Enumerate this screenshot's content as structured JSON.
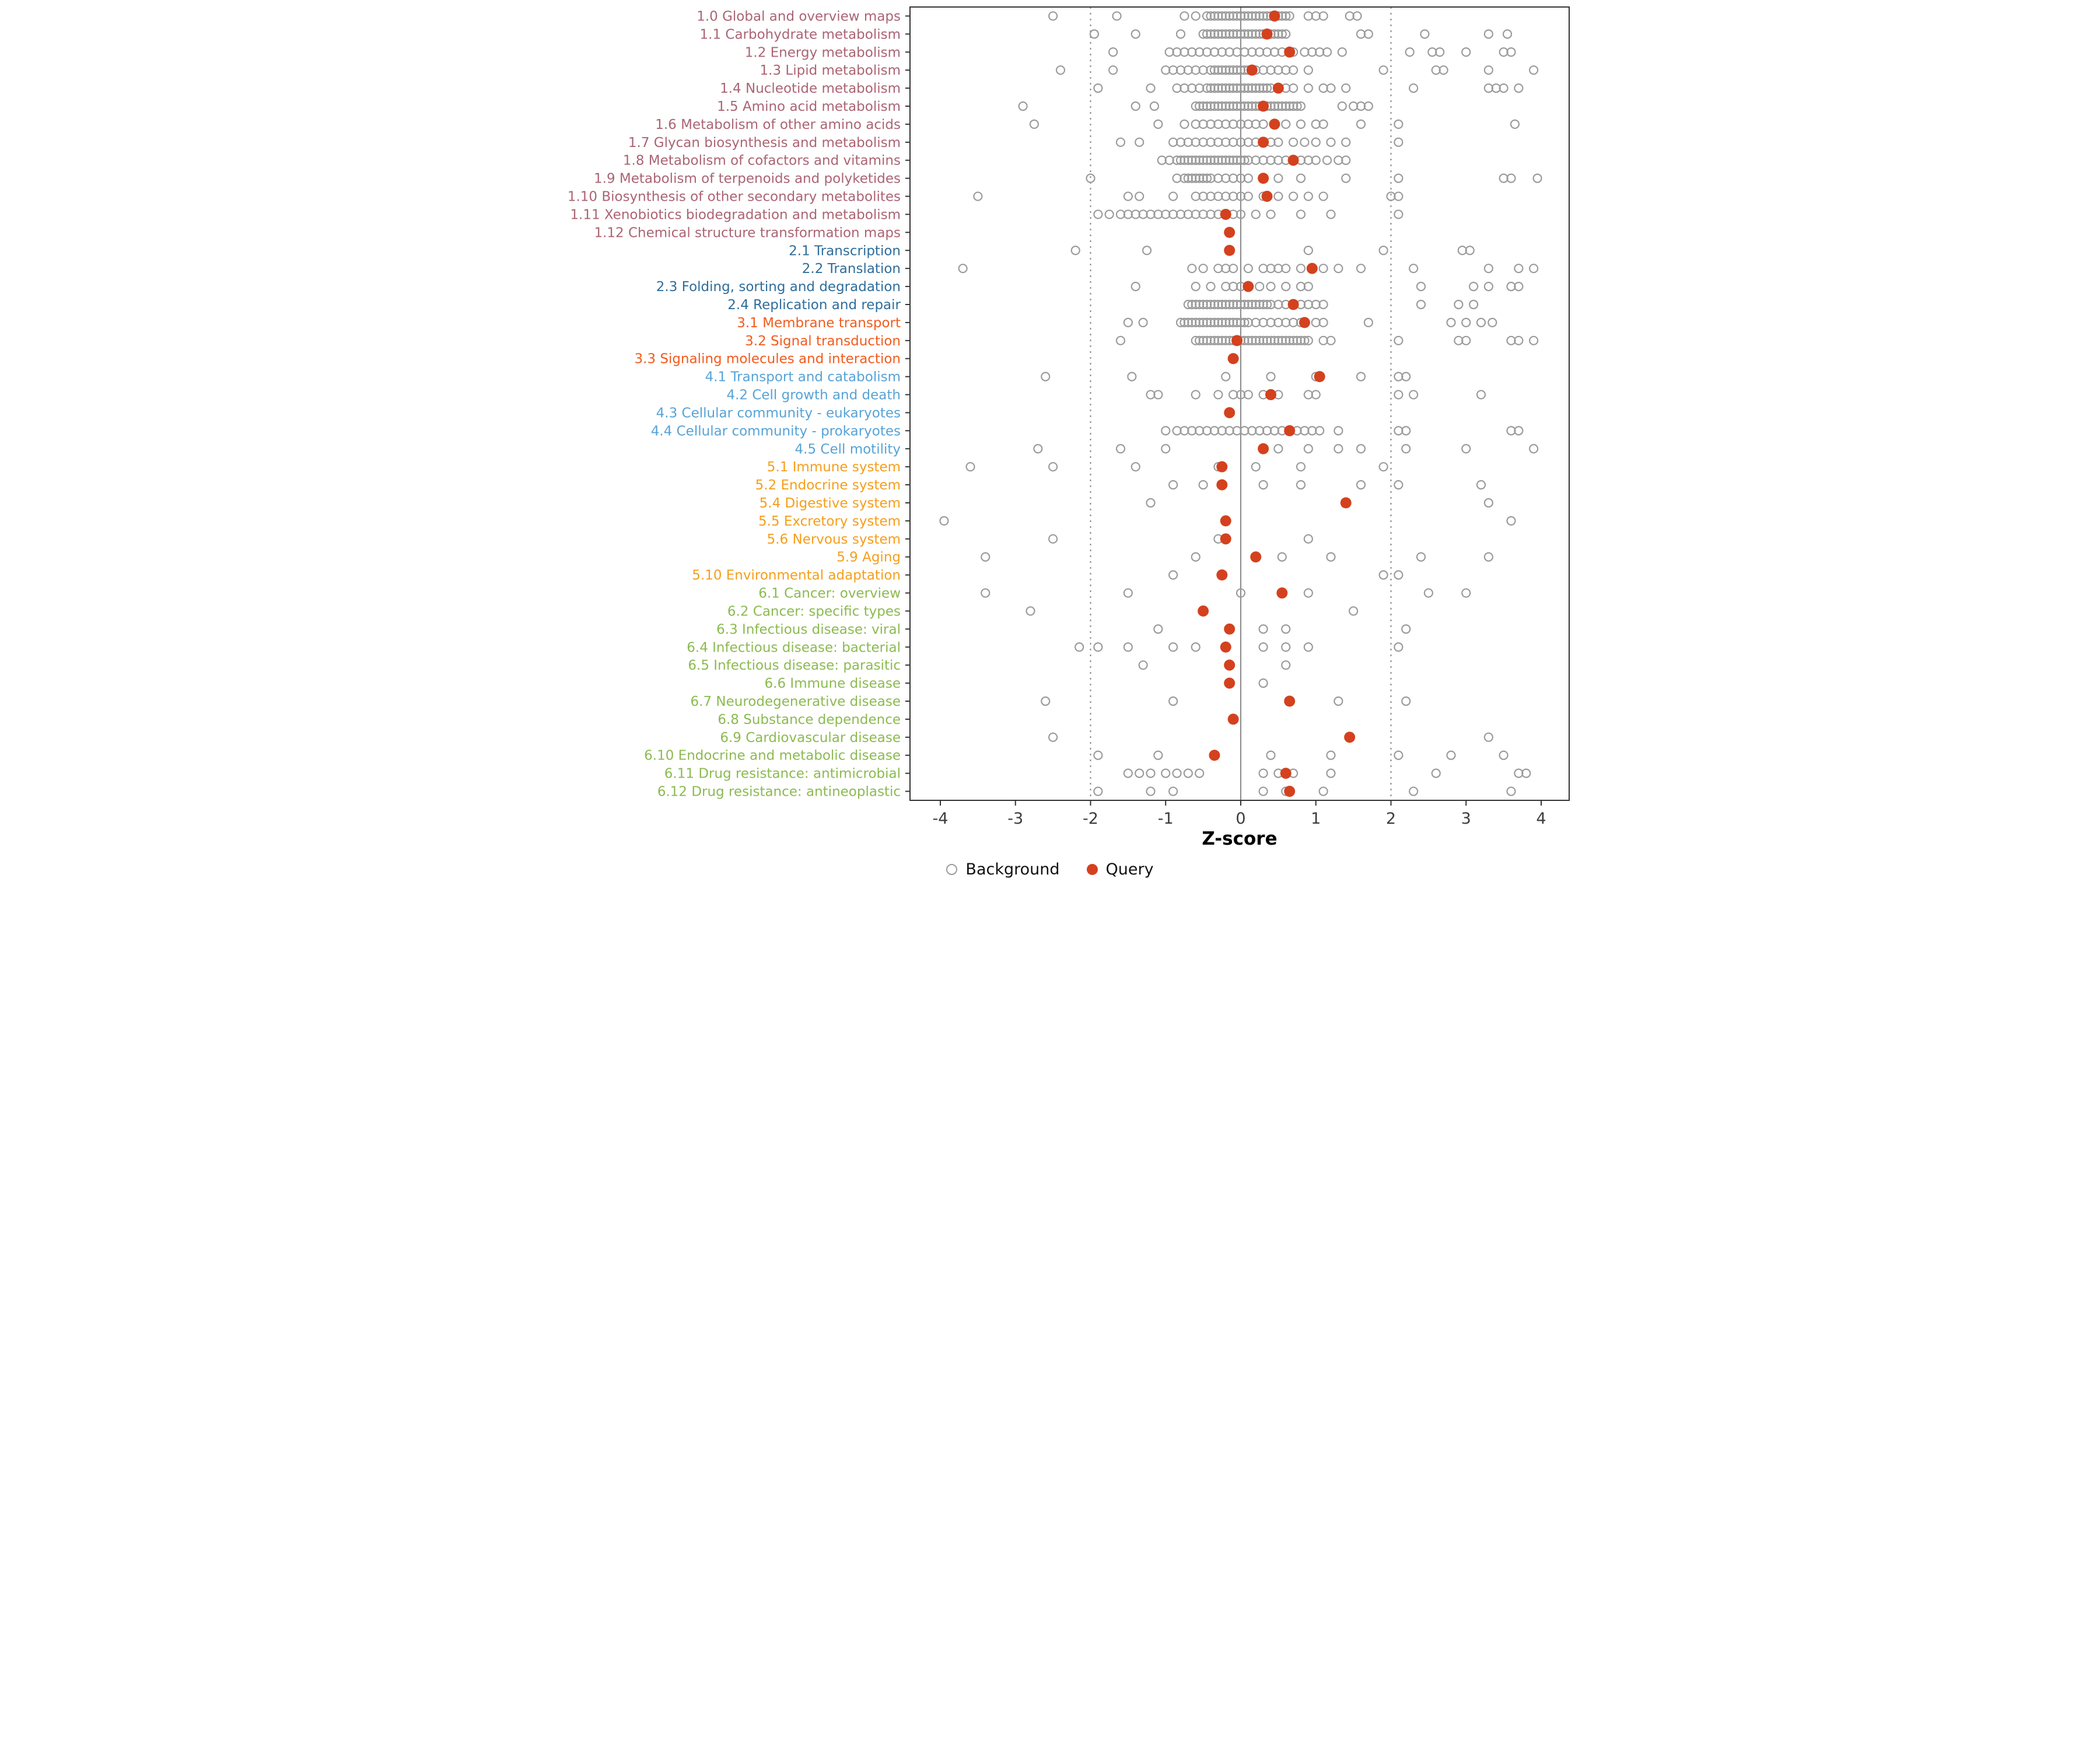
{
  "chart_data": {
    "type": "scatter",
    "title": "",
    "xlabel": "Z-score",
    "ylabel": "",
    "xlim": [
      -4.5,
      4.5
    ],
    "x_ticks": [
      -4,
      -3,
      -2,
      -1,
      0,
      1,
      2,
      3,
      4
    ],
    "grid": false,
    "legend_position": "bottom",
    "legend": {
      "background": "Background",
      "query": "Query"
    },
    "reference_lines": {
      "solid": [
        0
      ],
      "dotted": [
        -2,
        2
      ]
    },
    "colors": {
      "query": "#d4411e",
      "background_stroke": "#9b9b9b",
      "axis_text": "#3c3c3c",
      "reference_line": "#8a8a8a",
      "panel_border": "#333333"
    },
    "group_colors": {
      "metabolism": "#ab6474",
      "genetic_information_processing": "#2e6d9b",
      "environmental_information_processing": "#f25b1d",
      "cellular_processes": "#57a3d6",
      "organismal_systems": "#f59e1b",
      "human_diseases": "#8cba51"
    },
    "categories": [
      {
        "label": "1.0 Global and overview maps",
        "group": "metabolism",
        "query": 0.45,
        "background": [
          -2.5,
          -1.65,
          -0.75,
          -0.6,
          -0.45,
          -0.4,
          -0.35,
          -0.3,
          -0.25,
          -0.2,
          -0.15,
          -0.1,
          -0.05,
          0,
          0.05,
          0.1,
          0.15,
          0.2,
          0.25,
          0.3,
          0.35,
          0.4,
          0.45,
          0.5,
          0.55,
          0.6,
          0.65,
          0.9,
          1.0,
          1.1,
          1.45,
          1.55
        ]
      },
      {
        "label": "1.1 Carbohydrate metabolism",
        "group": "metabolism",
        "query": 0.35,
        "background": [
          -1.95,
          -1.4,
          -0.8,
          -0.5,
          -0.45,
          -0.4,
          -0.35,
          -0.3,
          -0.25,
          -0.2,
          -0.15,
          -0.1,
          -0.05,
          0,
          0.05,
          0.1,
          0.15,
          0.2,
          0.25,
          0.3,
          0.35,
          0.4,
          0.45,
          0.5,
          0.55,
          0.6,
          1.6,
          1.7,
          2.45,
          3.3,
          3.55
        ]
      },
      {
        "label": "1.2 Energy metabolism",
        "group": "metabolism",
        "query": 0.65,
        "background": [
          -1.7,
          -0.95,
          -0.85,
          -0.75,
          -0.65,
          -0.55,
          -0.45,
          -0.35,
          -0.25,
          -0.15,
          -0.05,
          0.05,
          0.15,
          0.25,
          0.35,
          0.45,
          0.55,
          0.7,
          0.85,
          0.95,
          1.05,
          1.15,
          1.35,
          2.25,
          2.55,
          2.65,
          3.0,
          3.5,
          3.6
        ]
      },
      {
        "label": "1.3 Lipid metabolism",
        "group": "metabolism",
        "query": 0.15,
        "background": [
          -2.4,
          -1.7,
          -1.0,
          -0.9,
          -0.8,
          -0.7,
          -0.6,
          -0.5,
          -0.4,
          -0.35,
          -0.3,
          -0.25,
          -0.2,
          -0.15,
          -0.1,
          -0.05,
          0,
          0.05,
          0.1,
          0.15,
          0.2,
          0.3,
          0.4,
          0.5,
          0.6,
          0.7,
          0.9,
          1.9,
          2.6,
          2.7,
          3.3,
          3.9
        ]
      },
      {
        "label": "1.4 Nucleotide metabolism",
        "group": "metabolism",
        "query": 0.5,
        "background": [
          -1.9,
          -1.2,
          -0.85,
          -0.75,
          -0.65,
          -0.55,
          -0.45,
          -0.4,
          -0.35,
          -0.3,
          -0.25,
          -0.2,
          -0.15,
          -0.1,
          -0.05,
          0,
          0.05,
          0.1,
          0.15,
          0.2,
          0.25,
          0.3,
          0.35,
          0.4,
          0.5,
          0.6,
          0.7,
          0.9,
          1.1,
          1.2,
          1.4,
          2.3,
          3.3,
          3.4,
          3.5,
          3.7
        ]
      },
      {
        "label": "1.5 Amino acid metabolism",
        "group": "metabolism",
        "query": 0.3,
        "background": [
          -2.9,
          -1.4,
          -1.15,
          -0.6,
          -0.55,
          -0.5,
          -0.45,
          -0.4,
          -0.35,
          -0.3,
          -0.25,
          -0.2,
          -0.15,
          -0.1,
          -0.05,
          0,
          0.05,
          0.1,
          0.15,
          0.2,
          0.25,
          0.3,
          0.35,
          0.4,
          0.45,
          0.5,
          0.55,
          0.6,
          0.65,
          0.7,
          0.75,
          0.8,
          1.35,
          1.5,
          1.6,
          1.7
        ]
      },
      {
        "label": "1.6 Metabolism of other amino acids",
        "group": "metabolism",
        "query": 0.45,
        "background": [
          -2.75,
          -1.1,
          -0.75,
          -0.6,
          -0.5,
          -0.4,
          -0.3,
          -0.2,
          -0.1,
          0,
          0.1,
          0.2,
          0.3,
          0.45,
          0.6,
          0.8,
          1.0,
          1.1,
          1.6,
          2.1,
          3.65
        ]
      },
      {
        "label": "1.7 Glycan biosynthesis and metabolism",
        "group": "metabolism",
        "query": 0.3,
        "background": [
          -1.6,
          -1.35,
          -0.9,
          -0.8,
          -0.7,
          -0.6,
          -0.5,
          -0.4,
          -0.3,
          -0.2,
          -0.1,
          0,
          0.1,
          0.2,
          0.3,
          0.4,
          0.5,
          0.7,
          0.85,
          1.0,
          1.2,
          1.4,
          2.1
        ]
      },
      {
        "label": "1.8 Metabolism of cofactors and vitamins",
        "group": "metabolism",
        "query": 0.7,
        "background": [
          -1.05,
          -0.95,
          -0.85,
          -0.8,
          -0.75,
          -0.7,
          -0.65,
          -0.6,
          -0.55,
          -0.5,
          -0.45,
          -0.4,
          -0.35,
          -0.3,
          -0.25,
          -0.2,
          -0.15,
          -0.1,
          -0.05,
          0,
          0.05,
          0.1,
          0.2,
          0.3,
          0.4,
          0.5,
          0.6,
          0.8,
          0.9,
          1.0,
          1.15,
          1.3,
          1.4
        ]
      },
      {
        "label": "1.9 Metabolism of terpenoids and polyketides",
        "group": "metabolism",
        "query": 0.3,
        "background": [
          -2.0,
          -0.85,
          -0.75,
          -0.7,
          -0.65,
          -0.6,
          -0.55,
          -0.5,
          -0.45,
          -0.4,
          -0.3,
          -0.2,
          -0.1,
          0,
          0.1,
          0.3,
          0.5,
          0.8,
          1.4,
          2.1,
          3.5,
          3.6,
          3.95
        ]
      },
      {
        "label": "1.10 Biosynthesis of other secondary metabolites",
        "group": "metabolism",
        "query": 0.35,
        "background": [
          -3.5,
          -1.5,
          -1.35,
          -0.9,
          -0.6,
          -0.5,
          -0.4,
          -0.3,
          -0.2,
          -0.1,
          0,
          0.1,
          0.3,
          0.5,
          0.7,
          0.9,
          1.1,
          2.0,
          2.1
        ]
      },
      {
        "label": "1.11 Xenobiotics biodegradation and metabolism",
        "group": "metabolism",
        "query": -0.2,
        "background": [
          -1.9,
          -1.75,
          -1.6,
          -1.5,
          -1.4,
          -1.3,
          -1.2,
          -1.1,
          -1.0,
          -0.9,
          -0.8,
          -0.7,
          -0.6,
          -0.5,
          -0.4,
          -0.3,
          -0.2,
          -0.1,
          0,
          0.2,
          0.4,
          0.8,
          1.2,
          2.1
        ]
      },
      {
        "label": "1.12 Chemical structure transformation maps",
        "group": "metabolism",
        "query": -0.15,
        "background": []
      },
      {
        "label": "2.1 Transcription",
        "group": "genetic_information_processing",
        "query": -0.15,
        "background": [
          -2.2,
          -1.25,
          0.9,
          1.9,
          2.95,
          3.05
        ]
      },
      {
        "label": "2.2 Translation",
        "group": "genetic_information_processing",
        "query": 0.95,
        "background": [
          -3.7,
          -0.65,
          -0.5,
          -0.3,
          -0.2,
          -0.1,
          0.1,
          0.3,
          0.4,
          0.5,
          0.6,
          0.8,
          1.1,
          1.3,
          1.6,
          2.3,
          3.3,
          3.7,
          3.9
        ]
      },
      {
        "label": "2.3 Folding, sorting and degradation",
        "group": "genetic_information_processing",
        "query": 0.1,
        "background": [
          -1.4,
          -0.6,
          -0.4,
          -0.2,
          -0.1,
          0,
          0.1,
          0.25,
          0.4,
          0.6,
          0.8,
          0.9,
          2.4,
          3.1,
          3.3,
          3.6,
          3.7
        ]
      },
      {
        "label": "2.4 Replication and repair",
        "group": "genetic_information_processing",
        "query": 0.7,
        "background": [
          -0.7,
          -0.65,
          -0.6,
          -0.55,
          -0.5,
          -0.45,
          -0.4,
          -0.35,
          -0.3,
          -0.25,
          -0.2,
          -0.15,
          -0.1,
          -0.05,
          0,
          0.05,
          0.1,
          0.15,
          0.2,
          0.25,
          0.3,
          0.35,
          0.4,
          0.5,
          0.6,
          0.7,
          0.8,
          0.9,
          1.0,
          1.1,
          2.4,
          2.9,
          3.1
        ]
      },
      {
        "label": "3.1 Membrane transport",
        "group": "environmental_information_processing",
        "query": 0.85,
        "background": [
          -1.5,
          -1.3,
          -0.8,
          -0.75,
          -0.7,
          -0.65,
          -0.6,
          -0.55,
          -0.5,
          -0.45,
          -0.4,
          -0.35,
          -0.3,
          -0.25,
          -0.2,
          -0.15,
          -0.1,
          -0.05,
          0,
          0.05,
          0.1,
          0.2,
          0.3,
          0.4,
          0.5,
          0.6,
          0.7,
          0.8,
          1.0,
          1.1,
          1.7,
          2.8,
          3.0,
          3.2,
          3.35
        ]
      },
      {
        "label": "3.2 Signal transduction",
        "group": "environmental_information_processing",
        "query": -0.05,
        "background": [
          -1.6,
          -0.6,
          -0.55,
          -0.5,
          -0.45,
          -0.4,
          -0.35,
          -0.3,
          -0.25,
          -0.2,
          -0.15,
          -0.1,
          -0.05,
          0,
          0.05,
          0.1,
          0.15,
          0.2,
          0.25,
          0.3,
          0.35,
          0.4,
          0.45,
          0.5,
          0.55,
          0.6,
          0.65,
          0.7,
          0.75,
          0.8,
          0.85,
          0.9,
          1.1,
          1.2,
          2.1,
          2.9,
          3.0,
          3.6,
          3.7,
          3.9
        ]
      },
      {
        "label": "3.3 Signaling molecules and interaction",
        "group": "environmental_information_processing",
        "query": -0.1,
        "background": []
      },
      {
        "label": "4.1 Transport and catabolism",
        "group": "cellular_processes",
        "query": 1.05,
        "background": [
          -2.6,
          -1.45,
          -0.2,
          0.4,
          1.0,
          1.6,
          2.1,
          2.2
        ]
      },
      {
        "label": "4.2 Cell growth and death",
        "group": "cellular_processes",
        "query": 0.4,
        "background": [
          -1.2,
          -1.1,
          -0.6,
          -0.3,
          -0.1,
          0,
          0.1,
          0.3,
          0.5,
          0.9,
          1.0,
          2.1,
          2.3,
          3.2
        ]
      },
      {
        "label": "4.3 Cellular community - eukaryotes",
        "group": "cellular_processes",
        "query": -0.15,
        "background": []
      },
      {
        "label": "4.4 Cellular community - prokaryotes",
        "group": "cellular_processes",
        "query": 0.65,
        "background": [
          -1.0,
          -0.85,
          -0.75,
          -0.65,
          -0.55,
          -0.45,
          -0.35,
          -0.25,
          -0.15,
          -0.05,
          0.05,
          0.15,
          0.25,
          0.35,
          0.45,
          0.55,
          0.65,
          0.75,
          0.85,
          0.95,
          1.05,
          1.3,
          2.1,
          2.2,
          3.6,
          3.7
        ]
      },
      {
        "label": "4.5 Cell motility",
        "group": "cellular_processes",
        "query": 0.3,
        "background": [
          -2.7,
          -1.6,
          -1.0,
          0.3,
          0.5,
          0.9,
          1.3,
          1.6,
          2.2,
          3.0,
          3.9
        ]
      },
      {
        "label": "5.1 Immune system",
        "group": "organismal_systems",
        "query": -0.25,
        "background": [
          -3.6,
          -2.5,
          -1.4,
          -0.3,
          0.2,
          0.8,
          1.9
        ]
      },
      {
        "label": "5.2 Endocrine system",
        "group": "organismal_systems",
        "query": -0.25,
        "background": [
          -0.9,
          -0.5,
          0.3,
          0.8,
          1.6,
          2.1,
          3.2
        ]
      },
      {
        "label": "5.4 Digestive system",
        "group": "organismal_systems",
        "query": 1.4,
        "background": [
          -1.2,
          3.3
        ]
      },
      {
        "label": "5.5 Excretory system",
        "group": "organismal_systems",
        "query": -0.2,
        "background": [
          -3.95,
          -0.2,
          3.6
        ]
      },
      {
        "label": "5.6 Nervous system",
        "group": "organismal_systems",
        "query": -0.2,
        "background": [
          -2.5,
          -0.3,
          0.9
        ]
      },
      {
        "label": "5.9 Aging",
        "group": "organismal_systems",
        "query": 0.2,
        "background": [
          -3.4,
          -0.6,
          0.55,
          1.2,
          2.4,
          3.3
        ]
      },
      {
        "label": "5.10 Environmental adaptation",
        "group": "organismal_systems",
        "query": -0.25,
        "background": [
          -0.9,
          1.9,
          2.1
        ]
      },
      {
        "label": "6.1 Cancer: overview",
        "group": "human_diseases",
        "query": 0.55,
        "background": [
          -3.4,
          -1.5,
          0,
          0.9,
          2.5,
          3.0
        ]
      },
      {
        "label": "6.2 Cancer: specific types",
        "group": "human_diseases",
        "query": -0.5,
        "background": [
          -2.8,
          1.5
        ]
      },
      {
        "label": "6.3 Infectious disease: viral",
        "group": "human_diseases",
        "query": -0.15,
        "background": [
          -1.1,
          0.3,
          0.6,
          2.2
        ]
      },
      {
        "label": "6.4 Infectious disease: bacterial",
        "group": "human_diseases",
        "query": -0.2,
        "background": [
          -2.15,
          -1.9,
          -1.5,
          -0.9,
          -0.6,
          0.3,
          0.6,
          0.9,
          2.1
        ]
      },
      {
        "label": "6.5 Infectious disease: parasitic",
        "group": "human_diseases",
        "query": -0.15,
        "background": [
          -1.3,
          0.6
        ]
      },
      {
        "label": "6.6 Immune disease",
        "group": "human_diseases",
        "query": -0.15,
        "background": [
          0.3
        ]
      },
      {
        "label": "6.7 Neurodegenerative disease",
        "group": "human_diseases",
        "query": 0.65,
        "background": [
          -2.6,
          -0.9,
          1.3,
          2.2
        ]
      },
      {
        "label": "6.8 Substance dependence",
        "group": "human_diseases",
        "query": -0.1,
        "background": []
      },
      {
        "label": "6.9 Cardiovascular disease",
        "group": "human_diseases",
        "query": 1.45,
        "background": [
          -2.5,
          3.3
        ]
      },
      {
        "label": "6.10 Endocrine and metabolic disease",
        "group": "human_diseases",
        "query": -0.35,
        "background": [
          -1.9,
          -1.1,
          0.4,
          1.2,
          2.1,
          2.8,
          3.5
        ]
      },
      {
        "label": "6.11 Drug resistance: antimicrobial",
        "group": "human_diseases",
        "query": 0.6,
        "background": [
          -1.5,
          -1.35,
          -1.2,
          -1.0,
          -0.85,
          -0.7,
          -0.55,
          0.3,
          0.5,
          0.7,
          1.2,
          2.6,
          3.7,
          3.8
        ]
      },
      {
        "label": "6.12 Drug resistance: antineoplastic",
        "group": "human_diseases",
        "query": 0.65,
        "background": [
          -1.9,
          -1.2,
          -0.9,
          0.3,
          0.6,
          1.1,
          2.3,
          3.6
        ]
      }
    ]
  }
}
